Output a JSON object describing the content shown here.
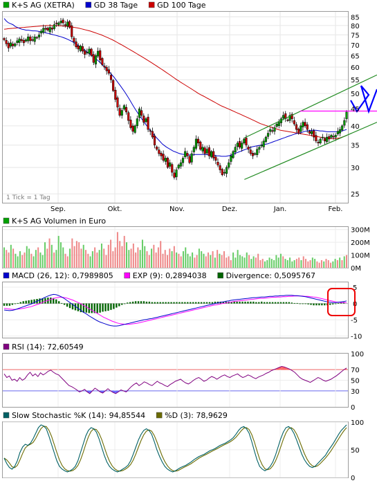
{
  "chart_data": [
    {
      "type": "candlestick",
      "legend": [
        {
          "label": "K+S AG (XETRA)",
          "color": "#00a000"
        },
        {
          "label": "GD 38 Tage",
          "color": "#0000cc"
        },
        {
          "label": "GD 100 Tage",
          "color": "#cc0000"
        }
      ],
      "note": "1 Tick = 1 Tag",
      "x_ticks": [
        "Sep.",
        "Okt.",
        "Nov.",
        "Dez.",
        "Jan.",
        "Feb."
      ],
      "y_ticks": [
        25,
        30,
        35,
        40,
        45,
        50,
        55,
        60,
        65,
        70,
        75,
        80,
        85
      ],
      "ylim": [
        23.5,
        88
      ],
      "scale": "log",
      "up_color": "#00a000",
      "down_color": "#cc0000",
      "close": [
        72.5,
        70.5,
        68.5,
        71,
        69.5,
        70.5,
        72,
        73,
        72,
        71,
        72.5,
        74,
        72,
        72.5,
        74,
        73.5,
        75,
        77,
        78.5,
        78,
        77.5,
        79,
        78,
        80.5,
        81,
        81.5,
        82.5,
        81.5,
        80,
        82,
        79,
        74,
        71.5,
        69,
        68,
        69.5,
        67,
        65.5,
        66.5,
        68,
        65,
        62,
        65,
        67,
        63,
        61,
        60,
        58.5,
        57.5,
        55,
        51,
        48,
        45.5,
        43,
        44.5,
        46,
        44,
        41.5,
        39.5,
        38.5,
        40,
        42,
        45,
        43,
        41,
        42,
        39,
        38.5,
        37,
        35,
        34,
        33,
        32.5,
        31.5,
        32,
        30,
        31,
        29,
        28,
        29.5,
        30.5,
        31,
        32,
        33.5,
        32.5,
        31,
        33,
        34.5,
        36.5,
        35.5,
        34,
        34.5,
        33,
        34,
        32.5,
        33.5,
        32,
        31.5,
        30.5,
        29.5,
        28.5,
        29,
        30,
        31,
        32.5,
        33.5,
        34.5,
        35.5,
        34.5,
        35.5,
        36.5,
        35,
        34,
        33,
        32.5,
        33,
        34,
        34.5,
        35,
        36,
        37,
        38,
        39,
        38.5,
        39.5,
        40.5,
        41,
        42,
        43,
        42,
        41.5,
        43,
        42,
        40.5,
        39,
        38,
        40,
        41,
        40,
        39,
        38,
        38.5,
        37,
        36,
        35.5,
        36.5,
        37,
        36,
        37,
        36.5,
        37.5,
        37,
        37.5,
        38.5,
        39,
        40,
        41.5,
        44
      ],
      "ma38": [
        84,
        82.5,
        81.5,
        81,
        80.5,
        79.5,
        79,
        78.5,
        78,
        77.8,
        77.5,
        77.5,
        77.3,
        77.1,
        77.1,
        77,
        76.8,
        76.5,
        76.3,
        76,
        75.8,
        75.5,
        75.2,
        74.9,
        74.6,
        74.3,
        74,
        73.6,
        73.2,
        72.7,
        72.2,
        71.6,
        71,
        70.3,
        69.5,
        68.8,
        68,
        67.3,
        66.5,
        65.7,
        65,
        64.2,
        63.4,
        62.6,
        61.7,
        60.8,
        59.9,
        59,
        58,
        57,
        56,
        54.9,
        53.8,
        52.7,
        51.6,
        50.5,
        49.3,
        48.1,
        46.9,
        45.7,
        44.6,
        43.6,
        42.6,
        41.7,
        40.8,
        40,
        39.2,
        38.5,
        37.8,
        37.1,
        36.5,
        35.9,
        35.3,
        34.9,
        34.5,
        34.2,
        33.9,
        33.6,
        33.4,
        33.2,
        33,
        32.9,
        32.8,
        32.7,
        32.7,
        32.7,
        32.7,
        32.8,
        32.8,
        32.8,
        32.8,
        32.8,
        32.8,
        32.7,
        32.7,
        32.6,
        32.6,
        32.5,
        32.5,
        32.4,
        32.4,
        32.4,
        32.5,
        32.6,
        32.8,
        33,
        33.2,
        33.4,
        33.6,
        33.8,
        34,
        34.2,
        34.4,
        34.6,
        34.7,
        34.8,
        34.9,
        35,
        35.1,
        35.2,
        35.3,
        35.5,
        35.7,
        35.9,
        36.1,
        36.3,
        36.5,
        36.7,
        36.9,
        37.1,
        37.3,
        37.5,
        37.7,
        37.9,
        38,
        38.1,
        38.3,
        38.5,
        38.6,
        38.7,
        38.8,
        38.8,
        38.8,
        38.7,
        38.6,
        38.6,
        38.5,
        38.4,
        38.4,
        38.4,
        38.4,
        38.4,
        38.4,
        38.5,
        38.6,
        38.8,
        39
      ],
      "ma100": [
        78,
        78.1,
        78.3,
        78.4,
        78.5,
        78.6,
        78.7,
        78.8,
        78.9,
        79,
        79.1,
        79.2,
        79.3,
        79.4,
        79.5,
        79.6,
        79.7,
        79.8,
        79.9,
        80,
        80,
        80,
        80,
        80,
        80,
        79.9,
        79.8,
        79.7,
        79.6,
        79.5,
        79.3,
        79.1,
        78.9,
        78.7,
        78.5,
        78.2,
        77.9,
        77.6,
        77.3,
        77,
        76.6,
        76.2,
        75.8,
        75.4,
        75,
        74.5,
        74,
        73.5,
        73,
        72.5,
        71.9,
        71.3,
        70.7,
        70.1,
        69.5,
        68.9,
        68.3,
        67.7,
        67.1,
        66.5,
        65.9,
        65.3,
        64.7,
        64.1,
        63.5,
        62.9,
        62.3,
        61.7,
        61.1,
        60.5,
        59.9,
        59.3,
        58.7,
        58.1,
        57.5,
        56.9,
        56.3,
        55.7,
        55.1,
        54.6,
        54,
        53.5,
        53,
        52.5,
        52,
        51.5,
        51,
        50.5,
        50,
        49.6,
        49.2,
        48.8,
        48.4,
        48,
        47.6,
        47.2,
        46.8,
        46.4,
        46,
        45.7,
        45.4,
        45.1,
        44.8,
        44.5,
        44.2,
        43.9,
        43.6,
        43.3,
        43,
        42.7,
        42.4,
        42.1,
        41.8,
        41.5,
        41.2,
        40.9,
        40.6,
        40.4,
        40.2,
        40,
        39.8,
        39.6,
        39.4,
        39.2,
        39,
        38.8,
        38.7,
        38.6,
        38.5,
        38.4,
        38.3,
        38.2,
        38.1,
        38,
        37.9,
        37.8,
        37.7,
        37.6,
        37.5,
        37.4,
        37.3,
        37.2,
        37.1,
        37,
        36.9,
        36.8,
        36.7,
        36.6,
        36.6,
        36.6,
        36.6,
        36.7,
        36.8,
        37,
        37.2,
        37.4
      ]
    },
    {
      "type": "bar",
      "legend": [
        {
          "label": "K+S AG Volumen in Euro",
          "color": "#00a000"
        }
      ],
      "y_ticks": [
        "300M",
        "200M",
        "100M",
        "0M"
      ],
      "y_tick_values": [
        300,
        200,
        100,
        0
      ],
      "ylim": [
        0,
        320
      ],
      "values": [
        160,
        140,
        120,
        180,
        150,
        110,
        90,
        130,
        100,
        120,
        170,
        150,
        110,
        90,
        140,
        160,
        120,
        100,
        200,
        150,
        230,
        180,
        120,
        140,
        250,
        200,
        160,
        110,
        90,
        150,
        230,
        170,
        210,
        200,
        150,
        180,
        140,
        110,
        90,
        130,
        160,
        120,
        140,
        190,
        150,
        100,
        180,
        220,
        130,
        160,
        280,
        210,
        170,
        250,
        200,
        140,
        150,
        190,
        120,
        160,
        140,
        220,
        170,
        130,
        100,
        150,
        180,
        120,
        160,
        210,
        110,
        140,
        100,
        150,
        130,
        170,
        120,
        110,
        90,
        130,
        160,
        110,
        90,
        120,
        80,
        100,
        150,
        130,
        110,
        90,
        120,
        100,
        130,
        80,
        140,
        110,
        100,
        130,
        80,
        90,
        60,
        120,
        80,
        140,
        100,
        90,
        80,
        120,
        100,
        70,
        90,
        80,
        110,
        60,
        70,
        50,
        60,
        80,
        70,
        60,
        100,
        80,
        110,
        90,
        70,
        60,
        80,
        50,
        60,
        70,
        80,
        60,
        90,
        70,
        50,
        60,
        80,
        70,
        50,
        40,
        60,
        50,
        70,
        60,
        40,
        50,
        70,
        60,
        80,
        60,
        90,
        100
      ],
      "up_color": "#66cc66",
      "down_color": "#ee8888"
    },
    {
      "type": "line",
      "legend": [
        {
          "label": "MACD (26, 12): 0,7989805",
          "color": "#0000cc"
        },
        {
          "label": "EXP (9): 0,2894038",
          "color": "#ff00ff"
        },
        {
          "label": "Divergence: 0,5095767",
          "color": "#006400"
        }
      ],
      "y_ticks": [
        5,
        0,
        -5,
        -10
      ],
      "ylim": [
        -10.5,
        6.5
      ],
      "macd": [
        -2,
        -2.1,
        -2.2,
        -2.1,
        -1.9,
        -1.6,
        -1.3,
        -1,
        -0.7,
        -0.4,
        -0.1,
        0.3,
        0.7,
        1.1,
        1.5,
        1.9,
        2.3,
        2.6,
        2.8,
        2.7,
        2.4,
        2,
        1.5,
        0.9,
        0.3,
        -0.3,
        -0.9,
        -1.5,
        -2.1,
        -2.7,
        -3.2,
        -3.8,
        -4.3,
        -4.8,
        -5.3,
        -5.7,
        -6,
        -6.3,
        -6.6,
        -6.8,
        -6.9,
        -6.9,
        -6.8,
        -6.6,
        -6.4,
        -6.2,
        -6,
        -5.8,
        -5.6,
        -5.4,
        -5.2,
        -5,
        -4.9,
        -4.7,
        -4.6,
        -4.4,
        -4.2,
        -4,
        -3.8,
        -3.6,
        -3.4,
        -3.2,
        -3,
        -2.8,
        -2.6,
        -2.4,
        -2.2,
        -2,
        -1.8,
        -1.6,
        -1.4,
        -1.2,
        -1,
        -0.8,
        -0.6,
        -0.4,
        -0.2,
        0,
        0.2,
        0.4,
        0.5,
        0.7,
        0.8,
        1,
        1.1,
        1.2,
        1.3,
        1.4,
        1.5,
        1.6,
        1.7,
        1.8,
        1.8,
        1.9,
        2,
        2,
        2.1,
        2.2,
        2.2,
        2.3,
        2.3,
        2.4,
        2.4,
        2.5,
        2.5,
        2.5,
        2.4,
        2.4,
        2.3,
        2.2,
        2.1,
        1.9,
        1.7,
        1.5,
        1.3,
        1.1,
        0.9,
        0.7,
        0.5,
        0.4,
        0.3,
        0.3,
        0.4,
        0.5,
        0.6,
        0.8
      ],
      "exp": [
        -1.5,
        -1.6,
        -1.7,
        -1.8,
        -1.8,
        -1.7,
        -1.6,
        -1.5,
        -1.3,
        -1.1,
        -0.9,
        -0.6,
        -0.3,
        0,
        0.4,
        0.7,
        1,
        1.3,
        1.6,
        1.8,
        1.9,
        1.9,
        1.8,
        1.6,
        1.3,
        1,
        0.6,
        0.2,
        -0.2,
        -0.7,
        -1.2,
        -1.7,
        -2.2,
        -2.7,
        -3.2,
        -3.7,
        -4.2,
        -4.6,
        -5,
        -5.4,
        -5.7,
        -6,
        -6.2,
        -6.3,
        -6.4,
        -6.4,
        -6.3,
        -6.2,
        -6.1,
        -5.9,
        -5.7,
        -5.5,
        -5.3,
        -5.1,
        -4.9,
        -4.7,
        -4.5,
        -4.3,
        -4.1,
        -3.9,
        -3.7,
        -3.5,
        -3.3,
        -3.1,
        -2.9,
        -2.7,
        -2.5,
        -2.3,
        -2.1,
        -1.9,
        -1.7,
        -1.5,
        -1.3,
        -1.1,
        -0.9,
        -0.7,
        -0.5,
        -0.4,
        -0.2,
        0,
        0.1,
        0.3,
        0.4,
        0.6,
        0.7,
        0.8,
        0.9,
        1,
        1.1,
        1.2,
        1.3,
        1.4,
        1.5,
        1.6,
        1.6,
        1.7,
        1.8,
        1.9,
        1.9,
        2,
        2,
        2.1,
        2.1,
        2.2,
        2.2,
        2.3,
        2.3,
        2.3,
        2.3,
        2.2,
        2.2,
        2.1,
        2,
        1.9,
        1.7,
        1.5,
        1.3,
        1.1,
        0.9,
        0.7,
        0.5,
        0.4,
        0.3,
        0.3,
        0.3
      ]
    },
    {
      "type": "line",
      "legend": [
        {
          "label": "RSI (14): 72,60549",
          "color": "#800080"
        }
      ],
      "y_ticks": [
        100,
        70,
        50,
        30,
        0
      ],
      "ylim": [
        0,
        100
      ],
      "levels": [
        70,
        30
      ],
      "values": [
        62,
        55,
        58,
        50,
        52,
        48,
        55,
        50,
        53,
        60,
        65,
        58,
        62,
        57,
        64,
        60,
        63,
        67,
        69,
        65,
        62,
        60,
        55,
        50,
        45,
        40,
        38,
        35,
        32,
        28,
        30,
        33,
        28,
        25,
        30,
        35,
        32,
        28,
        26,
        30,
        34,
        30,
        27,
        25,
        28,
        32,
        30,
        28,
        33,
        38,
        42,
        45,
        40,
        43,
        47,
        45,
        42,
        40,
        44,
        48,
        45,
        43,
        40,
        38,
        42,
        45,
        48,
        50,
        52,
        48,
        45,
        43,
        46,
        50,
        53,
        55,
        52,
        48,
        50,
        54,
        57,
        55,
        52,
        55,
        58,
        60,
        57,
        55,
        58,
        60,
        62,
        58,
        55,
        57,
        60,
        58,
        55,
        53,
        56,
        58,
        60,
        63,
        65,
        68,
        70,
        72,
        74,
        76,
        75,
        73,
        71,
        68,
        65,
        60,
        55,
        52,
        50,
        48,
        46,
        49,
        52,
        55,
        53,
        50,
        48,
        50,
        52,
        55,
        58,
        62,
        66,
        70,
        73
      ]
    },
    {
      "type": "line",
      "legend": [
        {
          "label": "Slow Stochastic %K (14): 94,85544",
          "color": "#006064"
        },
        {
          "label": "%D (3): 78,9629",
          "color": "#6b6b00"
        }
      ],
      "y_ticks": [
        100,
        50,
        0
      ],
      "ylim": [
        0,
        100
      ],
      "k": [
        35,
        25,
        18,
        15,
        20,
        30,
        45,
        55,
        60,
        58,
        62,
        70,
        80,
        90,
        95,
        93,
        88,
        75,
        60,
        45,
        30,
        20,
        15,
        12,
        10,
        12,
        15,
        20,
        30,
        45,
        60,
        75,
        85,
        90,
        88,
        82,
        70,
        55,
        40,
        28,
        20,
        15,
        12,
        10,
        12,
        15,
        18,
        22,
        30,
        42,
        55,
        68,
        78,
        85,
        88,
        85,
        78,
        65,
        50,
        38,
        28,
        20,
        15,
        12,
        10,
        12,
        15,
        18,
        20,
        22,
        25,
        28,
        32,
        35,
        38,
        40,
        42,
        45,
        48,
        50,
        52,
        55,
        58,
        60,
        62,
        65,
        68,
        72,
        78,
        85,
        90,
        92,
        88,
        80,
        65,
        48,
        32,
        20,
        15,
        12,
        15,
        20,
        28,
        40,
        55,
        70,
        82,
        90,
        92,
        88,
        80,
        68,
        55,
        42,
        32,
        25,
        20,
        18,
        20,
        25,
        30,
        35,
        40,
        48,
        55,
        62,
        70,
        78,
        85,
        90,
        95
      ]
    }
  ],
  "annotations": {
    "channel": {
      "upper": [
        [
          0.7,
          36.8
        ],
        [
          1.0,
          51.7
        ]
      ],
      "lower": [
        [
          0.7,
          27.6
        ],
        [
          1.0,
          37.6
        ]
      ],
      "resistance": 44.3,
      "resistance_span": [
        0.861,
        1.0
      ]
    }
  }
}
